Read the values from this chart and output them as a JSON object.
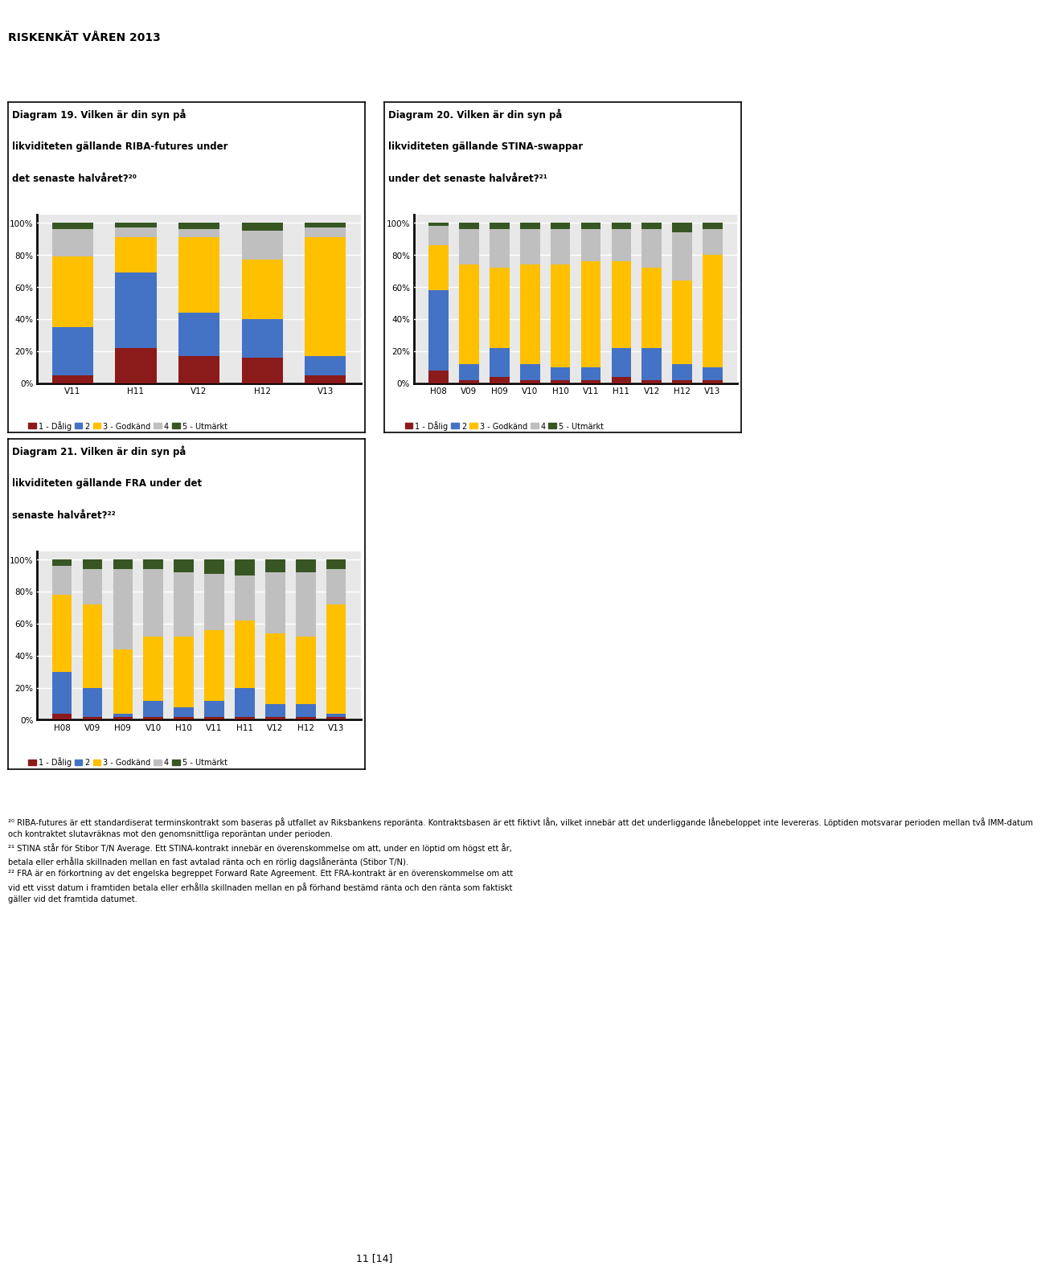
{
  "diagram19": {
    "categories": [
      "V11",
      "H11",
      "V12",
      "H12",
      "V13"
    ],
    "series": {
      "1 - Dålig": [
        0.05,
        0.22,
        0.17,
        0.16,
        0.05
      ],
      "2": [
        0.3,
        0.47,
        0.27,
        0.24,
        0.12
      ],
      "3 - Godkänd": [
        0.44,
        0.22,
        0.47,
        0.37,
        0.74
      ],
      "4": [
        0.17,
        0.06,
        0.05,
        0.18,
        0.06
      ],
      "5 - Utmärkt": [
        0.04,
        0.03,
        0.04,
        0.05,
        0.03
      ]
    },
    "title_lines": [
      "Diagram 19. Vilken är din syn på",
      "likviditeten gällande RIBA-futures under",
      "det senaste halvåret?²⁰"
    ]
  },
  "diagram20": {
    "categories": [
      "H08",
      "V09",
      "H09",
      "V10",
      "H10",
      "V11",
      "H11",
      "V12",
      "H12",
      "V13"
    ],
    "series": {
      "1 - Dålig": [
        0.08,
        0.02,
        0.04,
        0.02,
        0.02,
        0.02,
        0.04,
        0.02,
        0.02,
        0.02
      ],
      "2": [
        0.5,
        0.1,
        0.18,
        0.1,
        0.08,
        0.08,
        0.18,
        0.2,
        0.1,
        0.08
      ],
      "3 - Godkänd": [
        0.28,
        0.62,
        0.5,
        0.62,
        0.64,
        0.66,
        0.54,
        0.5,
        0.52,
        0.7
      ],
      "4": [
        0.12,
        0.22,
        0.24,
        0.22,
        0.22,
        0.2,
        0.2,
        0.24,
        0.3,
        0.16
      ],
      "5 - Utmärkt": [
        0.02,
        0.04,
        0.04,
        0.04,
        0.04,
        0.04,
        0.04,
        0.04,
        0.06,
        0.04
      ]
    },
    "title_lines": [
      "Diagram 20. Vilken är din syn på",
      "likviditeten gällande STINA-swappar",
      "under det senaste halvåret?²¹"
    ]
  },
  "diagram21": {
    "categories": [
      "H08",
      "V09",
      "H09",
      "V10",
      "H10",
      "V11",
      "H11",
      "V12",
      "H12",
      "V13"
    ],
    "series": {
      "1 - Dålig": [
        0.04,
        0.02,
        0.02,
        0.02,
        0.02,
        0.02,
        0.02,
        0.02,
        0.02,
        0.02
      ],
      "2": [
        0.26,
        0.18,
        0.02,
        0.1,
        0.06,
        0.1,
        0.18,
        0.08,
        0.08,
        0.02
      ],
      "3 - Godkänd": [
        0.48,
        0.52,
        0.4,
        0.4,
        0.44,
        0.44,
        0.42,
        0.44,
        0.42,
        0.68
      ],
      "4": [
        0.18,
        0.22,
        0.5,
        0.42,
        0.4,
        0.35,
        0.28,
        0.38,
        0.4,
        0.22
      ],
      "5 - Utmärkt": [
        0.04,
        0.06,
        0.06,
        0.06,
        0.08,
        0.09,
        0.1,
        0.08,
        0.08,
        0.06
      ]
    },
    "title_lines": [
      "Diagram 21. Vilken är din syn på",
      "likviditeten gällande FRA under det",
      "senaste halvåret?²²"
    ]
  },
  "colors": {
    "1 - Dålig": "#8B1A1A",
    "2": "#4472C4",
    "3 - Godkänd": "#FFC000",
    "4": "#BFBFBF",
    "5 - Utmärkt": "#375623"
  },
  "legend_labels": [
    "1 - Dålig",
    "2",
    "3 - Godkänd",
    "4",
    "5 - Utmärkt"
  ],
  "header_text": "RISKENKÄT VÅREN 2013",
  "footer_lines": [
    "²⁰ RIBA-futures är ett standardiserat terminskontrakt som baseras på utfallet av Riksbankens reporänta. Kontraktsbasen är ett fiktivt lån, vilket innebär att det underliggande lånebeloppet inte levereras. Löptiden motsvarar perioden mellan två IMM-datum",
    "och kontraktet slutavräknas mot den genomsnittliga reporäntan under perioden.",
    "²¹ STINA står för Stibor T/N Average. Ett STINA-kontrakt innebär en överenskommelse om att, under en löptid om högst ett år,",
    "betala eller erhålla skillnaden mellan en fast avtalad ränta och en rörlig dagslåneränta (Stibor T/N).",
    "²² FRA är en förkortning av det engelska begreppet Forward Rate Agreement. Ett FRA-kontrakt är en överenskommelse om att",
    "vid ett visst datum i framtiden betala eller erhålla skillnaden mellan en på förhand bestämd ränta och den ränta som faktiskt",
    "gäller vid det framtida datumet."
  ],
  "page_text": "11 [14]"
}
